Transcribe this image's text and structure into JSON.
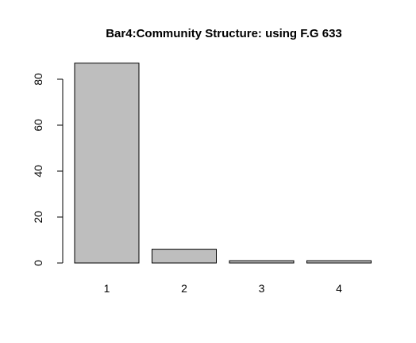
{
  "chart_data": {
    "type": "bar",
    "title": "Bar4:Community Structure: using F.G  633",
    "categories": [
      "1",
      "2",
      "3",
      "4"
    ],
    "values": [
      87,
      6,
      1,
      1
    ],
    "ylim": [
      0,
      90
    ],
    "yticks": [
      0,
      20,
      40,
      60,
      80
    ],
    "bar_color": "#bebebe",
    "border_color": "#000000",
    "xlabel": "",
    "ylabel": "",
    "grid": false
  }
}
